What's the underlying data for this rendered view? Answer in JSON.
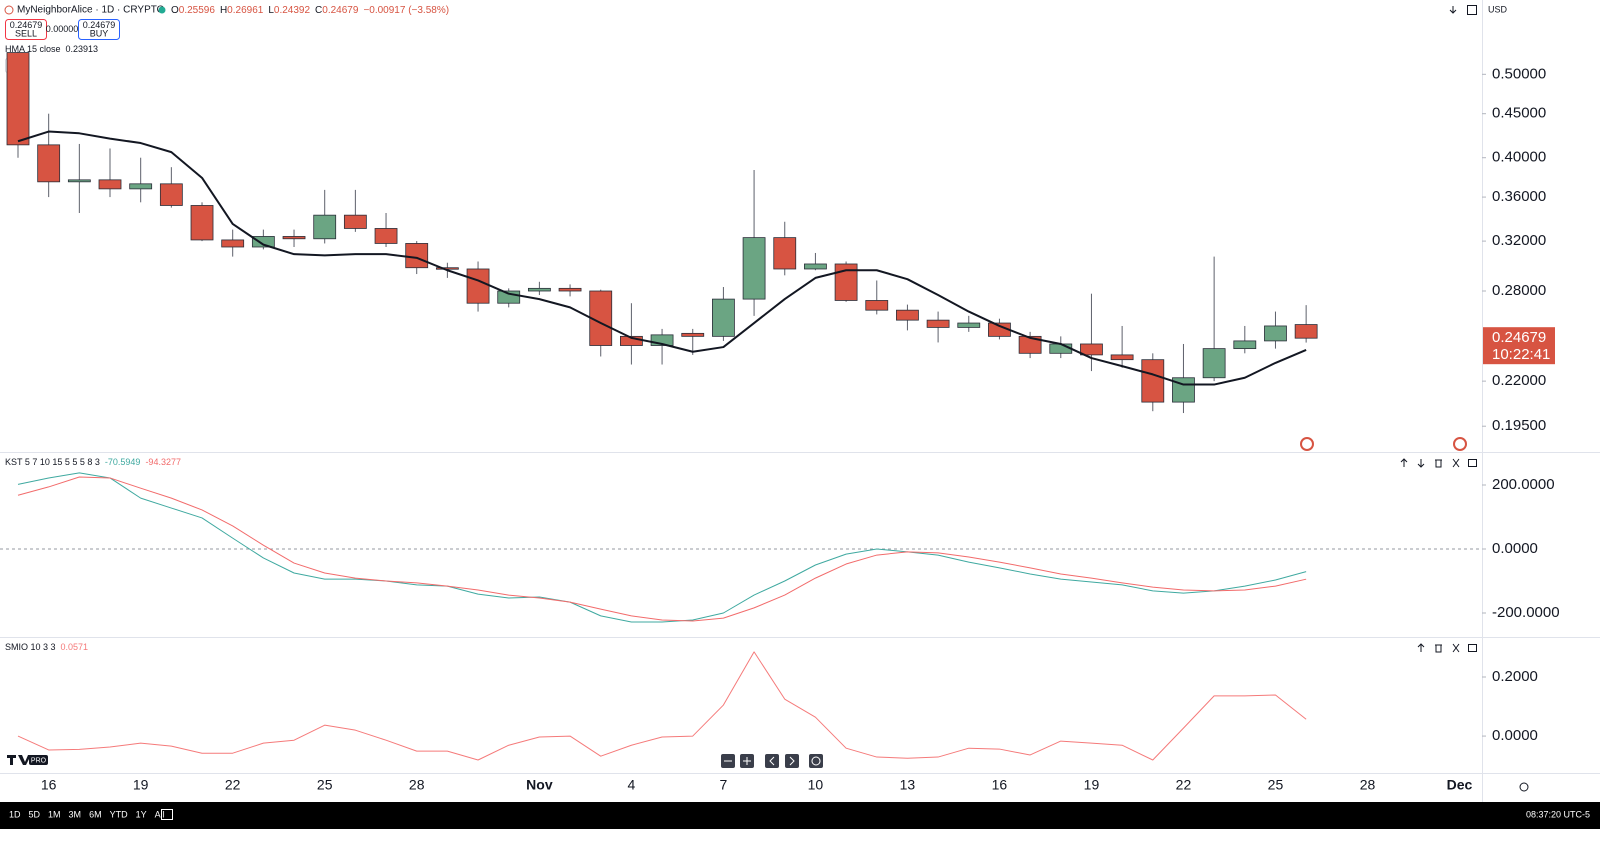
{
  "header": {
    "symbol": "MyNeighborAlice · 1D · CRYPTO",
    "ohlc_keys": [
      "O",
      "H",
      "L",
      "C"
    ],
    "change": "−0.00917 (−3.58%)",
    "sell": "SELL",
    "buy": "BUY",
    "spread": "0.00000",
    "currency": "USD"
  },
  "price_timer": "10:22:41",
  "timeframes": [
    "1D",
    "5D",
    "1M",
    "3M",
    "6M",
    "YTD",
    "1Y",
    "All"
  ],
  "clock": "08:37:20 UTC-5",
  "logo": "PRO",
  "chart_data": [
    {
      "type": "candlestick",
      "log_scale": true,
      "up_color": "#6ba583",
      "down_color": "#d75442",
      "categories": [
        null,
        "16",
        null,
        null,
        "19",
        null,
        null,
        "22",
        null,
        null,
        "25",
        null,
        null,
        "28",
        null,
        null,
        null,
        "Nov",
        null,
        null,
        "4",
        null,
        null,
        "7",
        null,
        null,
        "10",
        null,
        null,
        "13",
        null,
        null,
        "16",
        null,
        null,
        "19",
        null,
        null,
        "22",
        null,
        null,
        "25",
        null,
        null,
        "28",
        null,
        null,
        "Dec"
      ],
      "open": [
        0.53,
        0.414,
        0.375,
        0.377,
        0.368,
        0.373,
        0.352,
        0.321,
        0.315,
        0.324,
        0.322,
        0.343,
        0.331,
        0.318,
        0.298,
        0.297,
        0.271,
        0.28,
        0.282,
        0.28,
        0.248,
        0.242,
        0.25,
        0.248,
        0.274,
        0.323,
        0.297,
        0.301,
        0.273,
        0.266,
        0.259,
        0.254,
        0.257,
        0.248,
        0.237,
        0.243,
        0.236,
        0.233,
        0.208,
        0.222,
        0.24,
        0.245,
        0.25596,
        null,
        null,
        null,
        null,
        null
      ],
      "high": [
        0.535,
        0.45,
        0.415,
        0.41,
        0.4,
        0.39,
        0.355,
        0.33,
        0.33,
        0.33,
        0.367,
        0.367,
        0.345,
        0.32,
        0.302,
        0.303,
        0.282,
        0.287,
        0.285,
        0.281,
        0.271,
        0.253,
        0.253,
        0.283,
        0.387,
        0.337,
        0.31,
        0.303,
        0.288,
        0.27,
        0.265,
        0.262,
        0.26,
        0.251,
        0.248,
        0.278,
        0.255,
        0.237,
        0.243,
        0.307,
        0.255,
        0.265,
        0.26961,
        null,
        null,
        null,
        null,
        null
      ],
      "low": [
        0.4,
        0.36,
        0.345,
        0.36,
        0.355,
        0.35,
        0.32,
        0.307,
        0.313,
        0.315,
        0.318,
        0.328,
        0.315,
        0.293,
        0.29,
        0.265,
        0.268,
        0.277,
        0.276,
        0.235,
        0.23,
        0.23,
        0.236,
        0.245,
        0.262,
        0.292,
        0.296,
        0.272,
        0.263,
        0.252,
        0.244,
        0.251,
        0.246,
        0.234,
        0.234,
        0.226,
        0.228,
        0.203,
        0.202,
        0.22,
        0.237,
        0.24,
        0.24392,
        null,
        null,
        null,
        null,
        null
      ],
      "close": [
        0.414,
        0.375,
        0.377,
        0.368,
        0.373,
        0.352,
        0.321,
        0.315,
        0.324,
        0.322,
        0.343,
        0.331,
        0.318,
        0.298,
        0.297,
        0.271,
        0.28,
        0.282,
        0.28,
        0.242,
        0.242,
        0.249,
        0.248,
        0.274,
        0.323,
        0.297,
        0.301,
        0.273,
        0.266,
        0.259,
        0.254,
        0.257,
        0.248,
        0.237,
        0.243,
        0.236,
        0.233,
        0.208,
        0.222,
        0.24,
        0.245,
        0.255,
        0.24679,
        null,
        null,
        null,
        null,
        null
      ],
      "ylim": [
        0.182,
        0.61
      ],
      "yticks": [
        {
          "value": 0.5,
          "label": "0.50000"
        },
        {
          "value": 0.45,
          "label": "0.45000"
        },
        {
          "value": 0.4,
          "label": "0.40000"
        },
        {
          "value": 0.36,
          "label": "0.36000"
        },
        {
          "value": 0.32,
          "label": "0.32000"
        },
        {
          "value": 0.28,
          "label": "0.28000"
        },
        {
          "value": 0.22,
          "label": "0.22000"
        },
        {
          "value": 0.195,
          "label": "0.19500"
        }
      ],
      "series": [
        {
          "name": "HMA 15 close",
          "color": "#131722",
          "values": [
            0.418,
            0.429,
            0.427,
            0.421,
            0.416,
            0.406,
            0.379,
            0.335,
            0.317,
            0.309,
            0.308,
            0.309,
            0.309,
            0.306,
            0.296,
            0.288,
            0.278,
            0.274,
            0.268,
            0.257,
            0.247,
            0.243,
            0.238,
            0.241,
            0.257,
            0.274,
            0.29,
            0.296,
            0.296,
            0.289,
            0.277,
            0.265,
            0.255,
            0.247,
            0.243,
            0.234,
            0.229,
            0.224,
            0.218,
            0.218,
            0.222,
            0.231,
            0.23913,
            null,
            null,
            null,
            null,
            null
          ]
        }
      ]
    },
    {
      "type": "line",
      "title": "KST 5 7 10 15 5 5 5 8 3",
      "ylim": [
        -275,
        300
      ],
      "yticks": [
        {
          "value": 200,
          "label": "200.0000"
        },
        {
          "value": 0,
          "label": "0.0000"
        },
        {
          "value": -200,
          "label": "-200.0000"
        }
      ],
      "zero_line": true,
      "series": [
        {
          "color": "#3fa9a0",
          "values": [
            202,
            222,
            238,
            222,
            159,
            128,
            97,
            34,
            -28,
            -75,
            -94,
            -94,
            -100,
            -112,
            -116,
            -141,
            -153,
            -150,
            -166,
            -209,
            -228,
            -228,
            -222,
            -200,
            -144,
            -100,
            -50,
            -16,
            0,
            -9,
            -19,
            -41,
            -59,
            -78,
            -94,
            -103,
            -112,
            -131,
            -138,
            -131,
            -116,
            -97,
            -70.5949,
            null,
            null,
            null,
            null,
            null
          ]
        },
        {
          "color": "#f26b6b",
          "values": [
            168,
            194,
            225,
            222,
            190,
            159,
            122,
            72,
            12,
            -44,
            -75,
            -91,
            -100,
            -106,
            -116,
            -128,
            -144,
            -153,
            -166,
            -188,
            -209,
            -222,
            -225,
            -216,
            -184,
            -144,
            -91,
            -47,
            -19,
            -9,
            -12,
            -25,
            -41,
            -59,
            -78,
            -91,
            -106,
            -119,
            -128,
            -131,
            -128,
            -116,
            -94.3277,
            null,
            null,
            null,
            null,
            null
          ]
        }
      ]
    },
    {
      "type": "line",
      "title": "SMIO 10 3 3",
      "ylim": [
        -0.125,
        0.332
      ],
      "yticks": [
        {
          "value": 0.2,
          "label": "0.2000"
        },
        {
          "value": 0,
          "label": "0.0000"
        }
      ],
      "zero_line": false,
      "series": [
        {
          "color": "#f57a7a",
          "values": [
            0,
            -0.047,
            -0.045,
            -0.037,
            -0.024,
            -0.034,
            -0.058,
            -0.058,
            -0.024,
            -0.014,
            0.037,
            0.02,
            -0.014,
            -0.051,
            -0.051,
            -0.081,
            -0.031,
            -0.003,
            0,
            -0.068,
            -0.031,
            -0.003,
            0,
            0.105,
            0.285,
            0.125,
            0.064,
            -0.041,
            -0.071,
            -0.075,
            -0.071,
            -0.041,
            -0.044,
            -0.064,
            -0.017,
            -0.024,
            -0.031,
            -0.081,
            0.027,
            0.136,
            0.136,
            0.139,
            0.0571,
            null,
            null,
            null,
            null,
            null
          ]
        }
      ]
    }
  ]
}
